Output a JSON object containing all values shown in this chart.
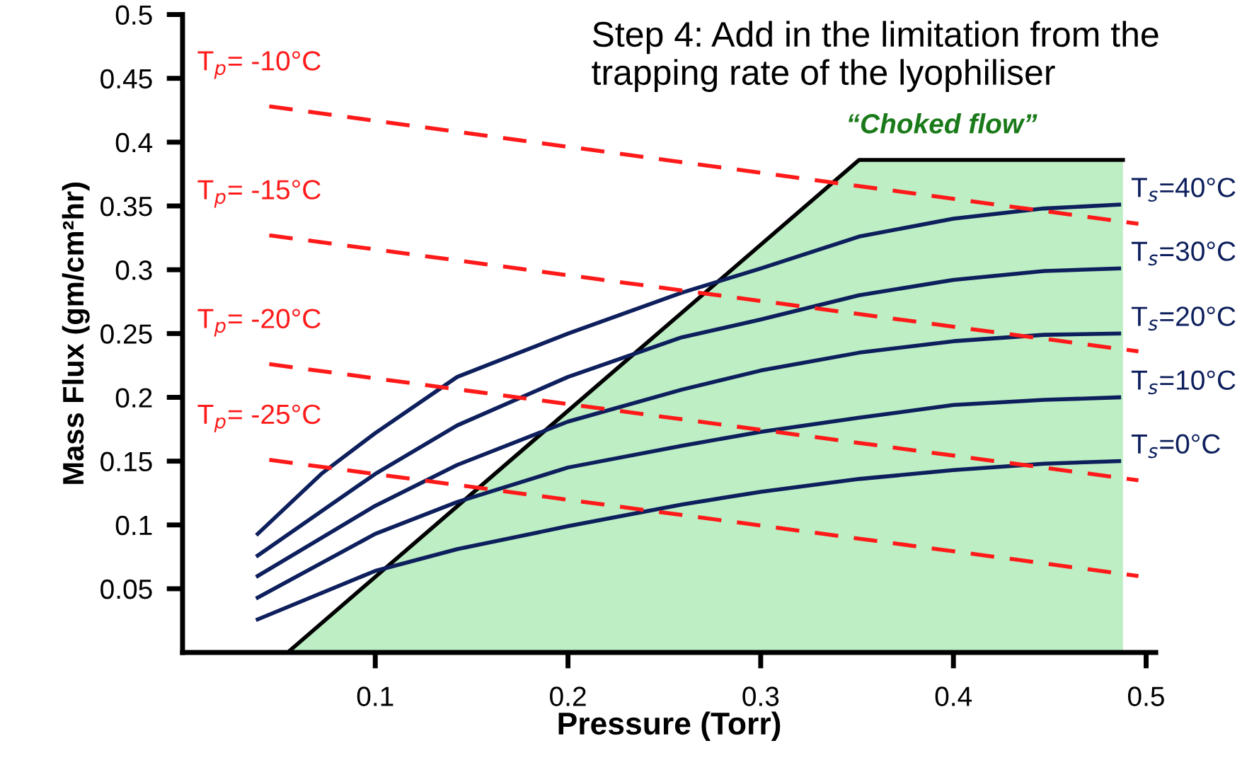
{
  "chart_data": {
    "type": "line",
    "title": "Step 4: Add in the limitation from the trapping rate of the lyophiliser",
    "xlabel": "Pressure (Torr)",
    "ylabel": "Mass Flux (gm/cm²hr)",
    "xlim": [
      0,
      0.505
    ],
    "ylim": [
      0,
      0.5
    ],
    "xticks": [
      0.1,
      0.2,
      0.3,
      0.4,
      0.5
    ],
    "yticks": [
      0.05,
      0.1,
      0.15,
      0.2,
      0.25,
      0.3,
      0.35,
      0.4,
      0.45,
      0.5
    ],
    "grid": false,
    "legend": false,
    "marker": "none",
    "annotations": [
      "“Choked flow”"
    ],
    "series": [
      {
        "type": "area",
        "color": "#bdeec4",
        "x": [
          0.056,
          0.351,
          0.488
        ],
        "values": [
          0.002,
          0.386,
          0.386
        ]
      },
      {
        "name": "T$_{s}$=40°C",
        "color": "#0d1f5c",
        "x": [
          0.039,
          0.072,
          0.1,
          0.1425,
          0.2,
          0.259,
          0.3,
          0.351,
          0.4,
          0.447,
          0.486
        ],
        "values": [
          0.093,
          0.14,
          0.172,
          0.216,
          0.25,
          0.282,
          0.301,
          0.326,
          0.34,
          0.348,
          0.351
        ]
      },
      {
        "name": "T$_{s}$=30°C",
        "color": "#0d1f5c",
        "x": [
          0.039,
          0.1,
          0.1425,
          0.2,
          0.259,
          0.3,
          0.351,
          0.4,
          0.447,
          0.486
        ],
        "values": [
          0.076,
          0.14,
          0.178,
          0.216,
          0.247,
          0.261,
          0.28,
          0.292,
          0.299,
          0.301
        ]
      },
      {
        "name": "T$_{s}$=20°C",
        "color": "#0d1f5c",
        "x": [
          0.039,
          0.1,
          0.1425,
          0.2,
          0.259,
          0.3,
          0.351,
          0.4,
          0.447,
          0.486
        ],
        "values": [
          0.06,
          0.115,
          0.147,
          0.181,
          0.206,
          0.221,
          0.235,
          0.244,
          0.249,
          0.25
        ]
      },
      {
        "name": "T$_{s}$=10°C",
        "color": "#0d1f5c",
        "x": [
          0.039,
          0.1,
          0.1425,
          0.2,
          0.259,
          0.3,
          0.351,
          0.4,
          0.447,
          0.486
        ],
        "values": [
          0.043,
          0.093,
          0.118,
          0.145,
          0.162,
          0.173,
          0.184,
          0.194,
          0.198,
          0.2
        ]
      },
      {
        "name": "T$_{s}$=0°C",
        "color": "#0d1f5c",
        "x": [
          0.039,
          0.1,
          0.1425,
          0.2,
          0.259,
          0.3,
          0.351,
          0.4,
          0.447,
          0.486
        ],
        "values": [
          0.026,
          0.064,
          0.081,
          0.099,
          0.116,
          0.126,
          0.136,
          0.143,
          0.148,
          0.15
        ]
      },
      {
        "name": "T$_{p}$= -10°C",
        "color": "#ff1a1a",
        "line_style": "dashed",
        "x": [
          0.045,
          0.496
        ],
        "values": [
          0.428,
          0.336
        ]
      },
      {
        "name": "T$_{p}$= -15°C",
        "color": "#ff1a1a",
        "line_style": "dashed",
        "x": [
          0.045,
          0.496
        ],
        "values": [
          0.327,
          0.236
        ]
      },
      {
        "name": "T$_{p}$= -20°C",
        "color": "#ff1a1a",
        "line_style": "dashed",
        "x": [
          0.045,
          0.496
        ],
        "values": [
          0.226,
          0.135
        ]
      },
      {
        "name": "T$_{p}$= -25°C",
        "color": "#ff1a1a",
        "line_style": "dashed",
        "x": [
          0.045,
          0.496
        ],
        "values": [
          0.151,
          0.06
        ]
      }
    ]
  }
}
